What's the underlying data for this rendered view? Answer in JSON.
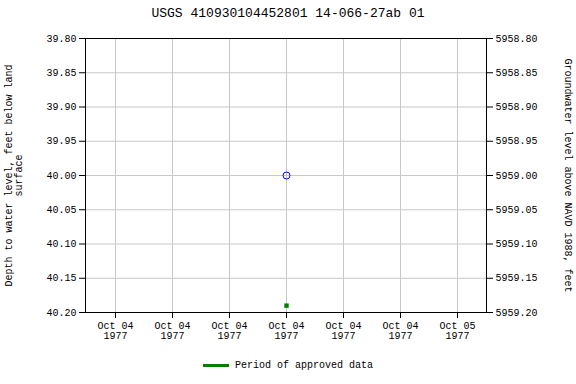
{
  "chart_data": {
    "type": "scatter",
    "title": "USGS 410930104452801 14-066-27ab 01",
    "categories": [
      "Oct 04\n1977",
      "Oct 04\n1977",
      "Oct 04\n1977",
      "Oct 04\n1977",
      "Oct 04\n1977",
      "Oct 04\n1977",
      "Oct 05\n1977"
    ],
    "series": [
      {
        "values": [
          null,
          null,
          null,
          40.0,
          null,
          null,
          null
        ],
        "color": "#0000ff",
        "marker": "open_circle"
      },
      {
        "name": "Period of approved data",
        "values": [
          null,
          null,
          null,
          40.19,
          null,
          null,
          null
        ],
        "color": "#008000",
        "marker": "square"
      }
    ],
    "ylabel": "Depth to water level, feet below land\nsurface",
    "y2label": "Groundwater level above NAVD 1988, feet",
    "ylim": [
      40.2,
      39.8
    ],
    "yticks": [
      {
        "value": 39.8,
        "label": "39.80"
      },
      {
        "value": 39.85,
        "label": "39.85"
      },
      {
        "value": 39.9,
        "label": "39.90"
      },
      {
        "value": 39.95,
        "label": "39.95"
      },
      {
        "value": 40.0,
        "label": "40.00"
      },
      {
        "value": 40.05,
        "label": "40.05"
      },
      {
        "value": 40.1,
        "label": "40.10"
      },
      {
        "value": 40.15,
        "label": "40.15"
      },
      {
        "value": 40.2,
        "label": "40.20"
      }
    ],
    "y2lim": [
      5959.2,
      5958.8
    ],
    "y2ticks": [
      {
        "value": 5958.8,
        "label": "5958.80"
      },
      {
        "value": 5958.85,
        "label": "5958.85"
      },
      {
        "value": 5958.9,
        "label": "5958.90"
      },
      {
        "value": 5958.95,
        "label": "5958.95"
      },
      {
        "value": 5959.0,
        "label": "5959.00"
      },
      {
        "value": 5959.05,
        "label": "5959.05"
      },
      {
        "value": 5959.1,
        "label": "5959.10"
      },
      {
        "value": 5959.15,
        "label": "5959.15"
      },
      {
        "value": 5959.2,
        "label": "5959.20"
      }
    ],
    "grid": true,
    "legend": "bottom"
  }
}
